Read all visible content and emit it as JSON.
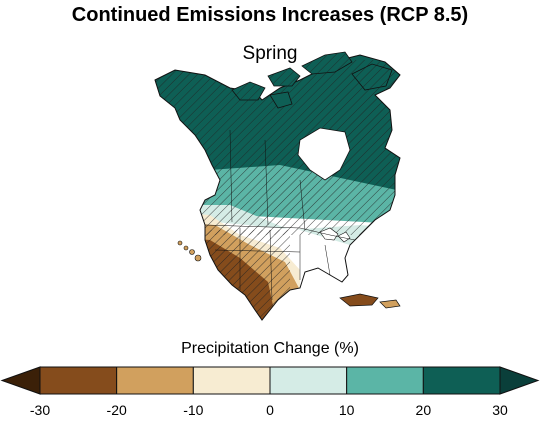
{
  "title": "Continued Emissions Increases (RCP 8.5)",
  "subtitle": "Spring",
  "legend": {
    "title": "Precipitation Change (%)",
    "bins": [
      {
        "from": -30,
        "to": -20,
        "color": "#854c1c"
      },
      {
        "from": -20,
        "to": -10,
        "color": "#d1a05e"
      },
      {
        "from": -10,
        "to": 0,
        "color": "#f7ecd2"
      },
      {
        "from": 0,
        "to": 10,
        "color": "#d5ece6"
      },
      {
        "from": 10,
        "to": 20,
        "color": "#5bb5a6"
      },
      {
        "from": 20,
        "to": 30,
        "color": "#0e5f55"
      }
    ],
    "under_color": "#3b2008",
    "over_color": "#0a3f3a",
    "tick_labels": [
      "-30",
      "-20",
      "-10",
      "0",
      "10",
      "20",
      "30"
    ]
  },
  "colors": {
    "ocean": "#ffffff",
    "border": "#111111",
    "hatch": "#222222"
  }
}
